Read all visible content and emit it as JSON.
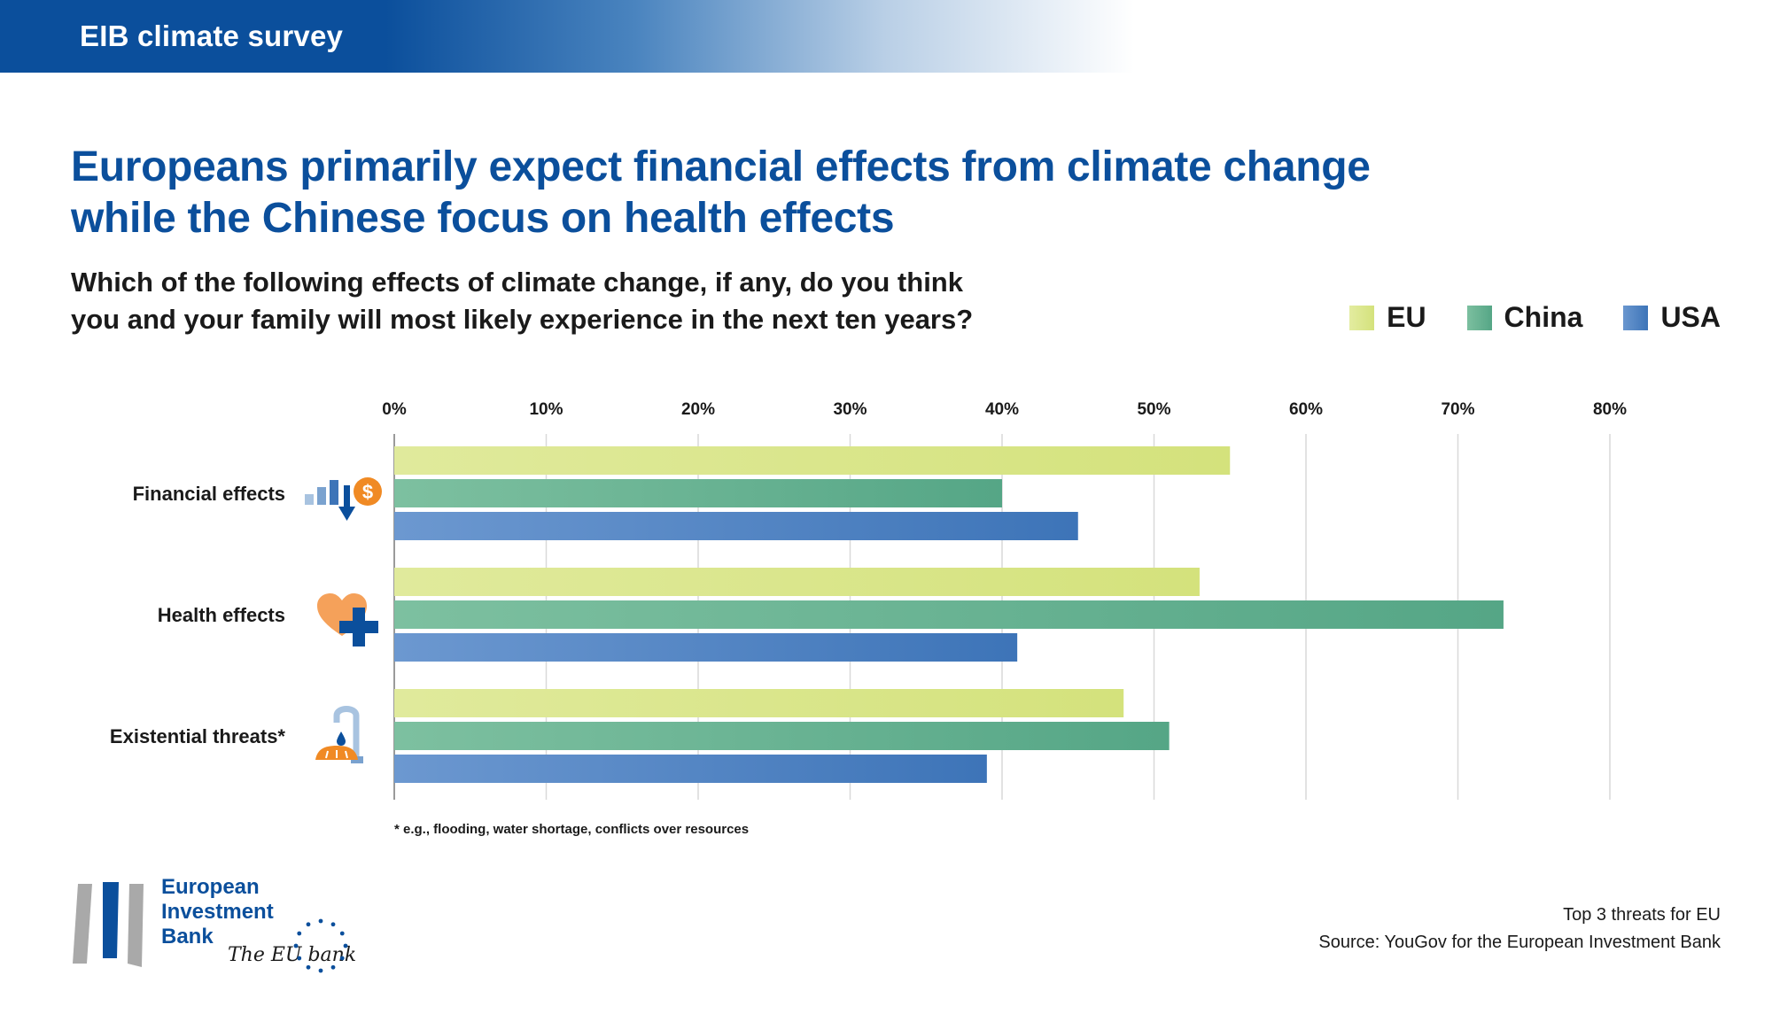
{
  "header": {
    "banner_title": "EIB climate survey"
  },
  "headline": {
    "line1": "Europeans primarily expect financial effects from climate change",
    "line2": "while the Chinese focus on health effects"
  },
  "question": {
    "line1": "Which of the following effects of climate change, if any, do you think",
    "line2": "you and your family will most likely experience in the next ten years?"
  },
  "footnote": "* e.g., flooding, water shortage, conflicts over resources",
  "source": {
    "line1": "Top 3 threats for EU",
    "line2": "Source: YouGov for the European Investment Bank"
  },
  "logo": {
    "line1": "European",
    "line2": "Investment",
    "line3": "Bank",
    "tagline": "The EU bank"
  },
  "colors": {
    "eu": "#d4e27c",
    "china": "#55a686",
    "usa": "#3d74b8",
    "brand_blue": "#0b4f9c"
  },
  "chart_data": {
    "type": "bar",
    "orientation": "horizontal",
    "title": "Europeans primarily expect financial effects from climate change while the Chinese focus on health effects",
    "categories": [
      "Financial effects",
      "Health effects",
      "Existential threats*"
    ],
    "category_icons": [
      "money-decline-icon",
      "health-heart-cross-icon",
      "water-tap-bread-icon"
    ],
    "series": [
      {
        "name": "EU",
        "values": [
          55,
          53,
          48
        ]
      },
      {
        "name": "China",
        "values": [
          40,
          73,
          51
        ]
      },
      {
        "name": "USA",
        "values": [
          45,
          41,
          39
        ]
      }
    ],
    "xlim": [
      0,
      80
    ],
    "xticks": [
      "0%",
      "10%",
      "20%",
      "30%",
      "40%",
      "50%",
      "60%",
      "70%",
      "80%"
    ],
    "xlabel": "",
    "ylabel": "",
    "grid": true,
    "legend_position": "top-right"
  }
}
